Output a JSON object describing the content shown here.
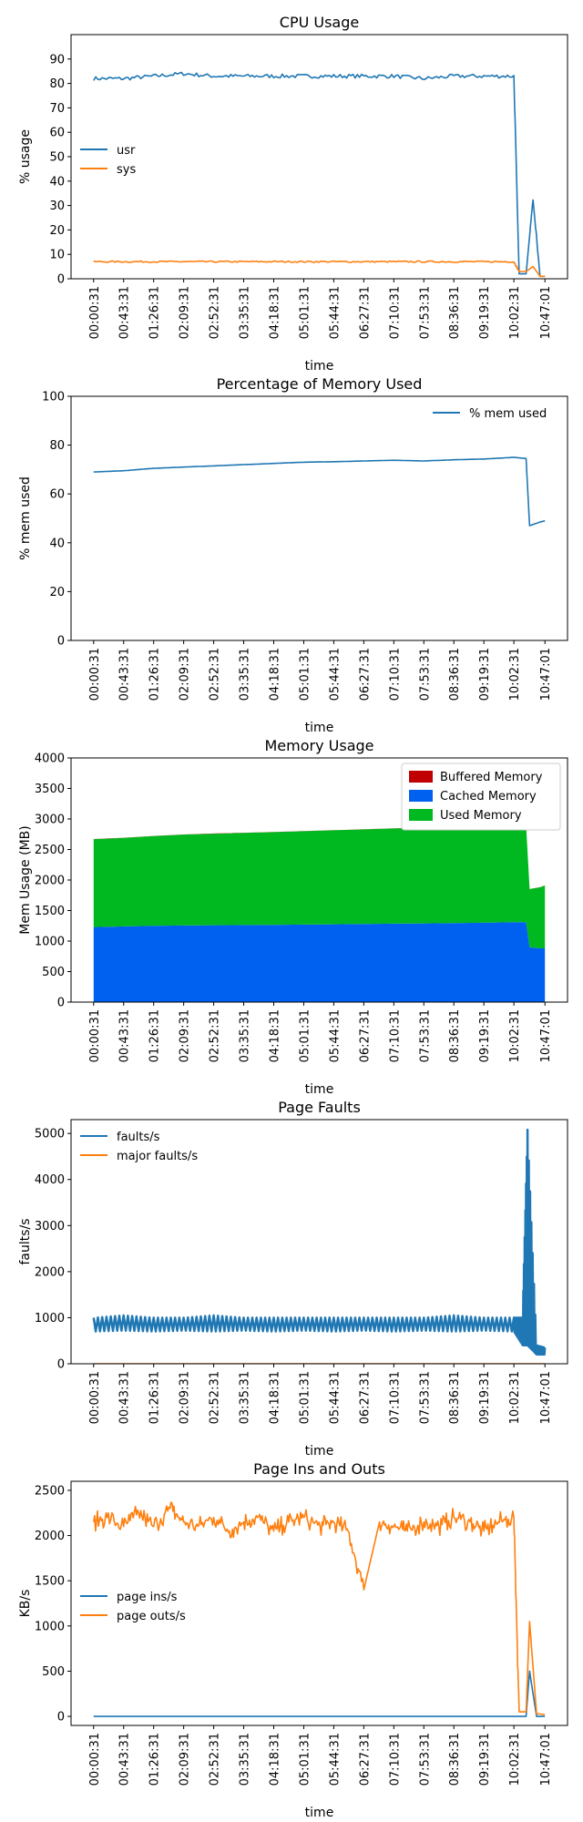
{
  "colors": {
    "blue": "#1f77b4",
    "orange": "#ff7f0e",
    "buffered": "#c00000",
    "cached": "#0060f0",
    "used": "#00b820"
  },
  "time_ticks": [
    "00:00:31",
    "00:43:31",
    "01:26:31",
    "02:09:31",
    "02:52:31",
    "03:35:31",
    "04:18:31",
    "05:01:31",
    "05:44:31",
    "06:27:31",
    "07:10:31",
    "07:53:31",
    "08:36:31",
    "09:19:31",
    "10:02:31",
    "10:47:01"
  ],
  "chart_data": [
    {
      "type": "line",
      "title": "CPU Usage",
      "xlabel": "time",
      "ylabel": "% usage",
      "ylim": [
        0,
        100
      ],
      "yticks": [
        0,
        10,
        20,
        30,
        40,
        50,
        60,
        70,
        80,
        90
      ],
      "legend": "center-left",
      "x": [
        "00:00:31",
        "00:43:31",
        "01:26:31",
        "02:09:31",
        "02:52:31",
        "03:35:31",
        "04:18:31",
        "05:01:31",
        "05:44:31",
        "06:27:31",
        "07:10:31",
        "07:53:31",
        "08:36:31",
        "09:19:31",
        "10:02:31",
        "10:10:00",
        "10:20:00",
        "10:30:00",
        "10:40:00",
        "10:47:01"
      ],
      "series": [
        {
          "name": "usr",
          "color": "#1f77b4",
          "values": [
            82,
            82,
            83,
            84,
            83,
            83,
            83,
            83,
            83,
            83,
            83,
            82,
            83,
            83,
            83,
            2,
            2,
            33,
            1,
            1
          ]
        },
        {
          "name": "sys",
          "color": "#ff7f0e",
          "values": [
            7,
            7,
            7,
            7,
            7,
            7,
            7,
            7,
            7,
            7,
            7,
            7,
            7,
            7,
            7,
            3,
            3,
            5,
            1,
            1
          ]
        }
      ]
    },
    {
      "type": "line",
      "title": "Percentage of Memory Used",
      "xlabel": "time",
      "ylabel": "% mem used",
      "ylim": [
        0,
        100
      ],
      "yticks": [
        0,
        20,
        40,
        60,
        80,
        100
      ],
      "legend": "top-right",
      "x": [
        "00:00:31",
        "00:43:31",
        "01:26:31",
        "02:09:31",
        "02:52:31",
        "03:35:31",
        "04:18:31",
        "05:01:31",
        "05:44:31",
        "06:27:31",
        "07:10:31",
        "07:53:31",
        "08:36:31",
        "09:19:31",
        "10:02:31",
        "10:20:00",
        "10:25:00",
        "10:40:00",
        "10:47:01"
      ],
      "series": [
        {
          "name": "% mem used",
          "color": "#1f77b4",
          "values": [
            69,
            69.5,
            70.5,
            71,
            71.5,
            72,
            72.5,
            73,
            73.2,
            73.5,
            73.8,
            73.5,
            74,
            74.3,
            75,
            74.5,
            47,
            48.5,
            49
          ]
        }
      ]
    },
    {
      "type": "area",
      "title": "Memory Usage",
      "xlabel": "time",
      "ylabel": "Mem Usage (MB)",
      "ylim": [
        0,
        4000
      ],
      "yticks": [
        0,
        500,
        1000,
        1500,
        2000,
        2500,
        3000,
        3500,
        4000
      ],
      "legend": "top-right",
      "x": [
        "00:00:31",
        "00:43:31",
        "01:26:31",
        "02:09:31",
        "02:52:31",
        "03:35:31",
        "04:18:31",
        "05:01:31",
        "05:44:31",
        "06:27:31",
        "07:10:31",
        "07:53:31",
        "08:36:31",
        "09:19:31",
        "10:02:31",
        "10:20:00",
        "10:25:00",
        "10:40:00",
        "10:47:01"
      ],
      "series": [
        {
          "name": "Buffered Memory",
          "color": "#c00000",
          "values": [
            2,
            2,
            2,
            2,
            2,
            2,
            2,
            2,
            2,
            2,
            2,
            2,
            2,
            2,
            2,
            2,
            2,
            2,
            2
          ]
        },
        {
          "name": "Cached Memory",
          "color": "#0060f0",
          "values": [
            1230,
            1240,
            1250,
            1255,
            1260,
            1262,
            1265,
            1270,
            1275,
            1280,
            1285,
            1290,
            1295,
            1300,
            1310,
            1310,
            900,
            880,
            880
          ]
        },
        {
          "name": "Used Memory",
          "color": "#00b820",
          "values": [
            1440,
            1450,
            1470,
            1490,
            1500,
            1510,
            1520,
            1530,
            1540,
            1550,
            1560,
            1570,
            1580,
            1590,
            1600,
            1590,
            950,
            1000,
            1030
          ]
        }
      ]
    },
    {
      "type": "line",
      "title": "Page Faults",
      "xlabel": "time",
      "ylabel": "faults/s",
      "ylim": [
        0,
        5300
      ],
      "yticks": [
        0,
        1000,
        2000,
        3000,
        4000,
        5000
      ],
      "legend": "top-left",
      "x": [
        "00:00:31",
        "00:43:31",
        "01:26:31",
        "02:09:31",
        "02:52:31",
        "03:35:31",
        "04:18:31",
        "05:01:31",
        "05:44:31",
        "06:27:31",
        "07:10:31",
        "07:53:31",
        "08:36:31",
        "09:19:31",
        "10:02:31",
        "10:15:00",
        "10:22:00",
        "10:35:00",
        "10:47:01"
      ],
      "series": [
        {
          "name": "faults/s",
          "color": "#1f77b4",
          "values": [
            1000,
            1050,
            1000,
            1000,
            1050,
            1000,
            1000,
            1000,
            1000,
            1000,
            1000,
            1000,
            1050,
            1000,
            1000,
            1000,
            5080,
            400,
            350
          ],
          "low": [
            700,
            720,
            700,
            720,
            700,
            720,
            700,
            720,
            700,
            720,
            700,
            720,
            700,
            720,
            700,
            400,
            400,
            200,
            200
          ]
        },
        {
          "name": "major faults/s",
          "color": "#ff7f0e",
          "values": [
            0,
            0,
            0,
            0,
            0,
            0,
            0,
            0,
            0,
            0,
            0,
            0,
            0,
            0,
            0,
            0,
            0,
            0,
            0
          ]
        }
      ]
    },
    {
      "type": "line",
      "title": "Page Ins and Outs",
      "xlabel": "time",
      "ylabel": "KB/s",
      "ylim": [
        -100,
        2600
      ],
      "yticks": [
        0,
        500,
        1000,
        1500,
        2000,
        2500
      ],
      "legend": "center-left",
      "x": [
        "00:00:31",
        "00:20:00",
        "00:43:31",
        "01:05:00",
        "01:26:31",
        "01:50:00",
        "02:09:31",
        "02:30:00",
        "02:52:31",
        "03:15:00",
        "03:35:31",
        "03:55:00",
        "04:18:31",
        "04:40:00",
        "05:01:31",
        "05:25:00",
        "05:44:31",
        "06:05:00",
        "06:27:31",
        "06:50:00",
        "07:10:31",
        "07:30:00",
        "07:53:31",
        "08:15:00",
        "08:36:31",
        "09:00:00",
        "09:19:31",
        "09:40:00",
        "10:02:31",
        "10:10:00",
        "10:20:00",
        "10:25:00",
        "10:35:00",
        "10:47:01"
      ],
      "series": [
        {
          "name": "page ins/s",
          "color": "#1f77b4",
          "values": [
            0,
            0,
            0,
            0,
            0,
            0,
            0,
            0,
            0,
            0,
            0,
            0,
            0,
            0,
            0,
            0,
            0,
            0,
            0,
            0,
            0,
            0,
            0,
            0,
            0,
            0,
            0,
            0,
            0,
            0,
            0,
            500,
            0,
            0
          ]
        },
        {
          "name": "page outs/s",
          "color": "#ff7f0e",
          "values": [
            2150,
            2200,
            2100,
            2250,
            2100,
            2300,
            2150,
            2100,
            2200,
            2050,
            2150,
            2200,
            2050,
            2150,
            2200,
            2100,
            2150,
            2050,
            1400,
            2150,
            2100,
            2050,
            2150,
            2100,
            2200,
            2150,
            2050,
            2150,
            2200,
            50,
            50,
            1050,
            30,
            20
          ]
        }
      ]
    }
  ]
}
